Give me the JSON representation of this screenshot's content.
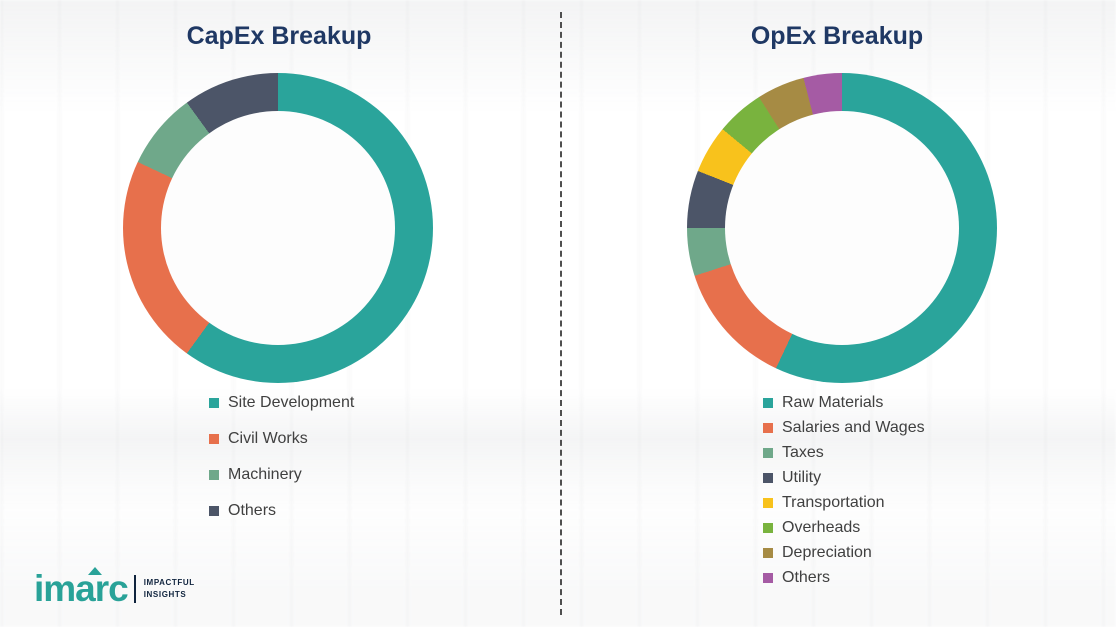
{
  "colors": {
    "title_navy": "#1F3864",
    "brand_teal": "#29A298",
    "legend_text": "#404040"
  },
  "logo": {
    "brand": "imarc",
    "tagline_line1": "IMPACTFUL",
    "tagline_line2": "INSIGHTS"
  },
  "chart_data": [
    {
      "type": "pie",
      "subtype": "donut",
      "title": "CapEx Breakup",
      "legend_position": "bottom",
      "start_angle_deg": 0,
      "direction": "clockwise",
      "segments": [
        {
          "label": "Site Development",
          "value": 60,
          "color": "#2AA49B"
        },
        {
          "label": "Civil Works",
          "value": 22,
          "color": "#E7704C"
        },
        {
          "label": "Machinery",
          "value": 8,
          "color": "#6FA88A"
        },
        {
          "label": "Others",
          "value": 10,
          "color": "#4C5568"
        }
      ]
    },
    {
      "type": "pie",
      "subtype": "donut",
      "title": "OpEx Breakup",
      "legend_position": "bottom",
      "start_angle_deg": 0,
      "direction": "clockwise",
      "segments": [
        {
          "label": "Raw Materials",
          "value": 57,
          "color": "#2AA49B"
        },
        {
          "label": "Salaries and Wages",
          "value": 13,
          "color": "#E7704C"
        },
        {
          "label": "Taxes",
          "value": 5,
          "color": "#6FA88A"
        },
        {
          "label": "Utility",
          "value": 6,
          "color": "#4C5568"
        },
        {
          "label": "Transportation",
          "value": 5,
          "color": "#F8C21C"
        },
        {
          "label": "Overheads",
          "value": 5,
          "color": "#79B33E"
        },
        {
          "label": "Depreciation",
          "value": 5,
          "color": "#A68B44"
        },
        {
          "label": "Others",
          "value": 4,
          "color": "#A55BA4"
        }
      ]
    }
  ]
}
